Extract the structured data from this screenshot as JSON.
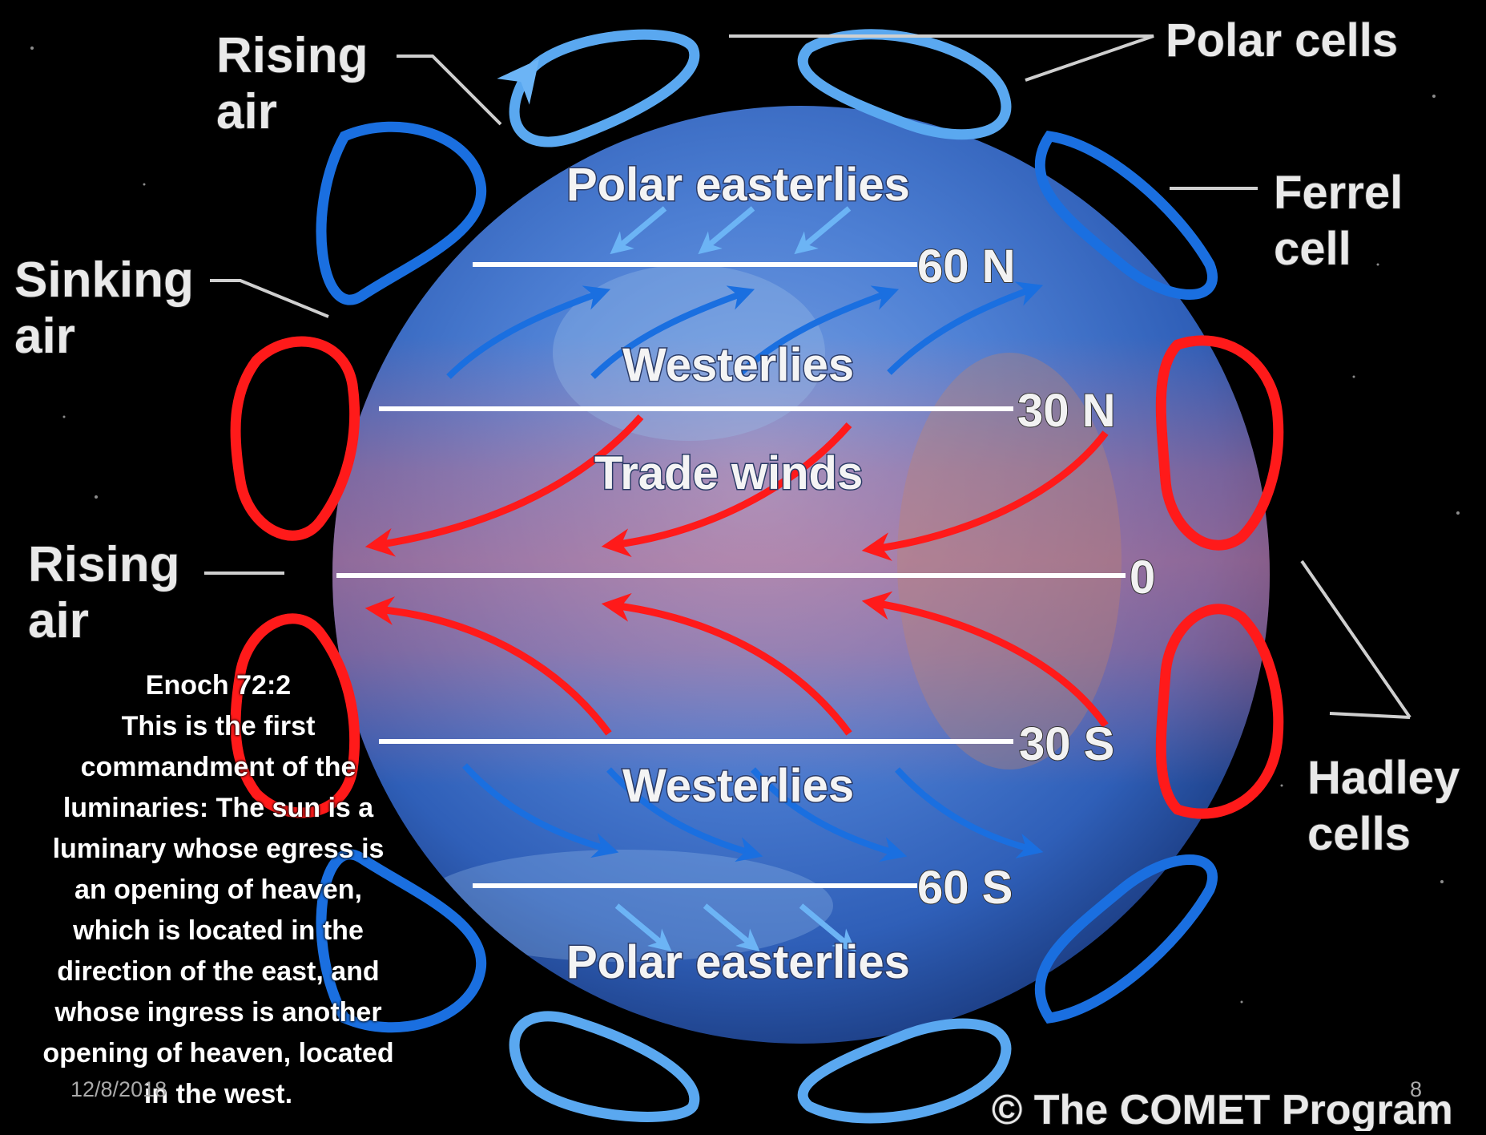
{
  "labels": {
    "polar_cells": "Polar cells",
    "ferrel_cell": [
      "Ferrel",
      "cell"
    ],
    "hadley_cells": [
      "Hadley",
      "cells"
    ],
    "rising_air_top": [
      "Rising",
      "air"
    ],
    "sinking_air": [
      "Sinking",
      "air"
    ],
    "rising_air_mid": [
      "Rising",
      "air"
    ]
  },
  "zones": {
    "polar_easterlies_n": "Polar easterlies",
    "westerlies_n": "Westerlies",
    "trade_winds": "Trade winds",
    "westerlies_s": "Westerlies",
    "polar_easterlies_s": "Polar easterlies"
  },
  "latitudes": {
    "n60": "60 N",
    "n30": "30 N",
    "eq": "0",
    "s30": "30 S",
    "s60": "60 S"
  },
  "copyright": "© The COMET Program",
  "quote": {
    "lines": [
      "Enoch 72:2",
      "This is the first",
      "commandment of the",
      "luminaries: The sun is a",
      "luminary whose egress is",
      "an opening of heaven,",
      "which is located in the",
      "direction of the east, and",
      "whose ingress is another",
      "opening of heaven, located",
      "in the west."
    ]
  },
  "footer": {
    "date": "12/8/2018",
    "page": "8"
  },
  "colors": {
    "background": "#000000",
    "hadley": "#ff1a1a",
    "ferrel": "#1a6fe0",
    "polar": "#5aa8f0",
    "globe": "#3f78cf"
  },
  "icons": {
    "globe": "earth-globe-icon",
    "copyright": "copyright-icon"
  }
}
